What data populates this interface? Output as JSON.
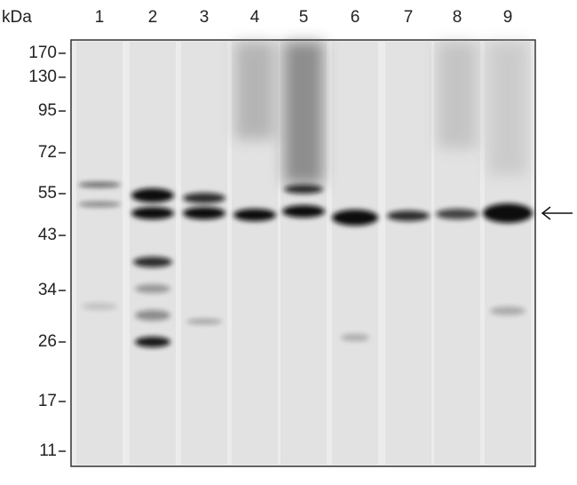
{
  "unit_label": "kDa",
  "lanes": [
    "1",
    "2",
    "3",
    "4",
    "5",
    "6",
    "7",
    "8",
    "9"
  ],
  "markers": [
    "170",
    "130",
    "95",
    "72",
    "55",
    "43",
    "34",
    "26",
    "17",
    "11"
  ]
}
